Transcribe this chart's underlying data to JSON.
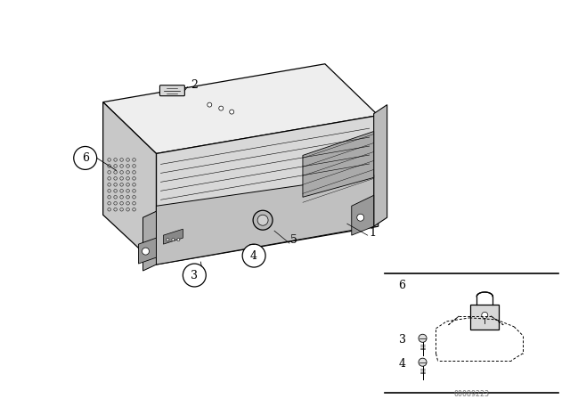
{
  "background_color": "#ffffff",
  "line_color": "#000000",
  "label_color": "#000000",
  "figure_width": 6.4,
  "figure_height": 4.48,
  "dpi": 100,
  "watermark": "00089223",
  "part_numbers": [
    "1",
    "2",
    "3",
    "4",
    "5",
    "6"
  ]
}
